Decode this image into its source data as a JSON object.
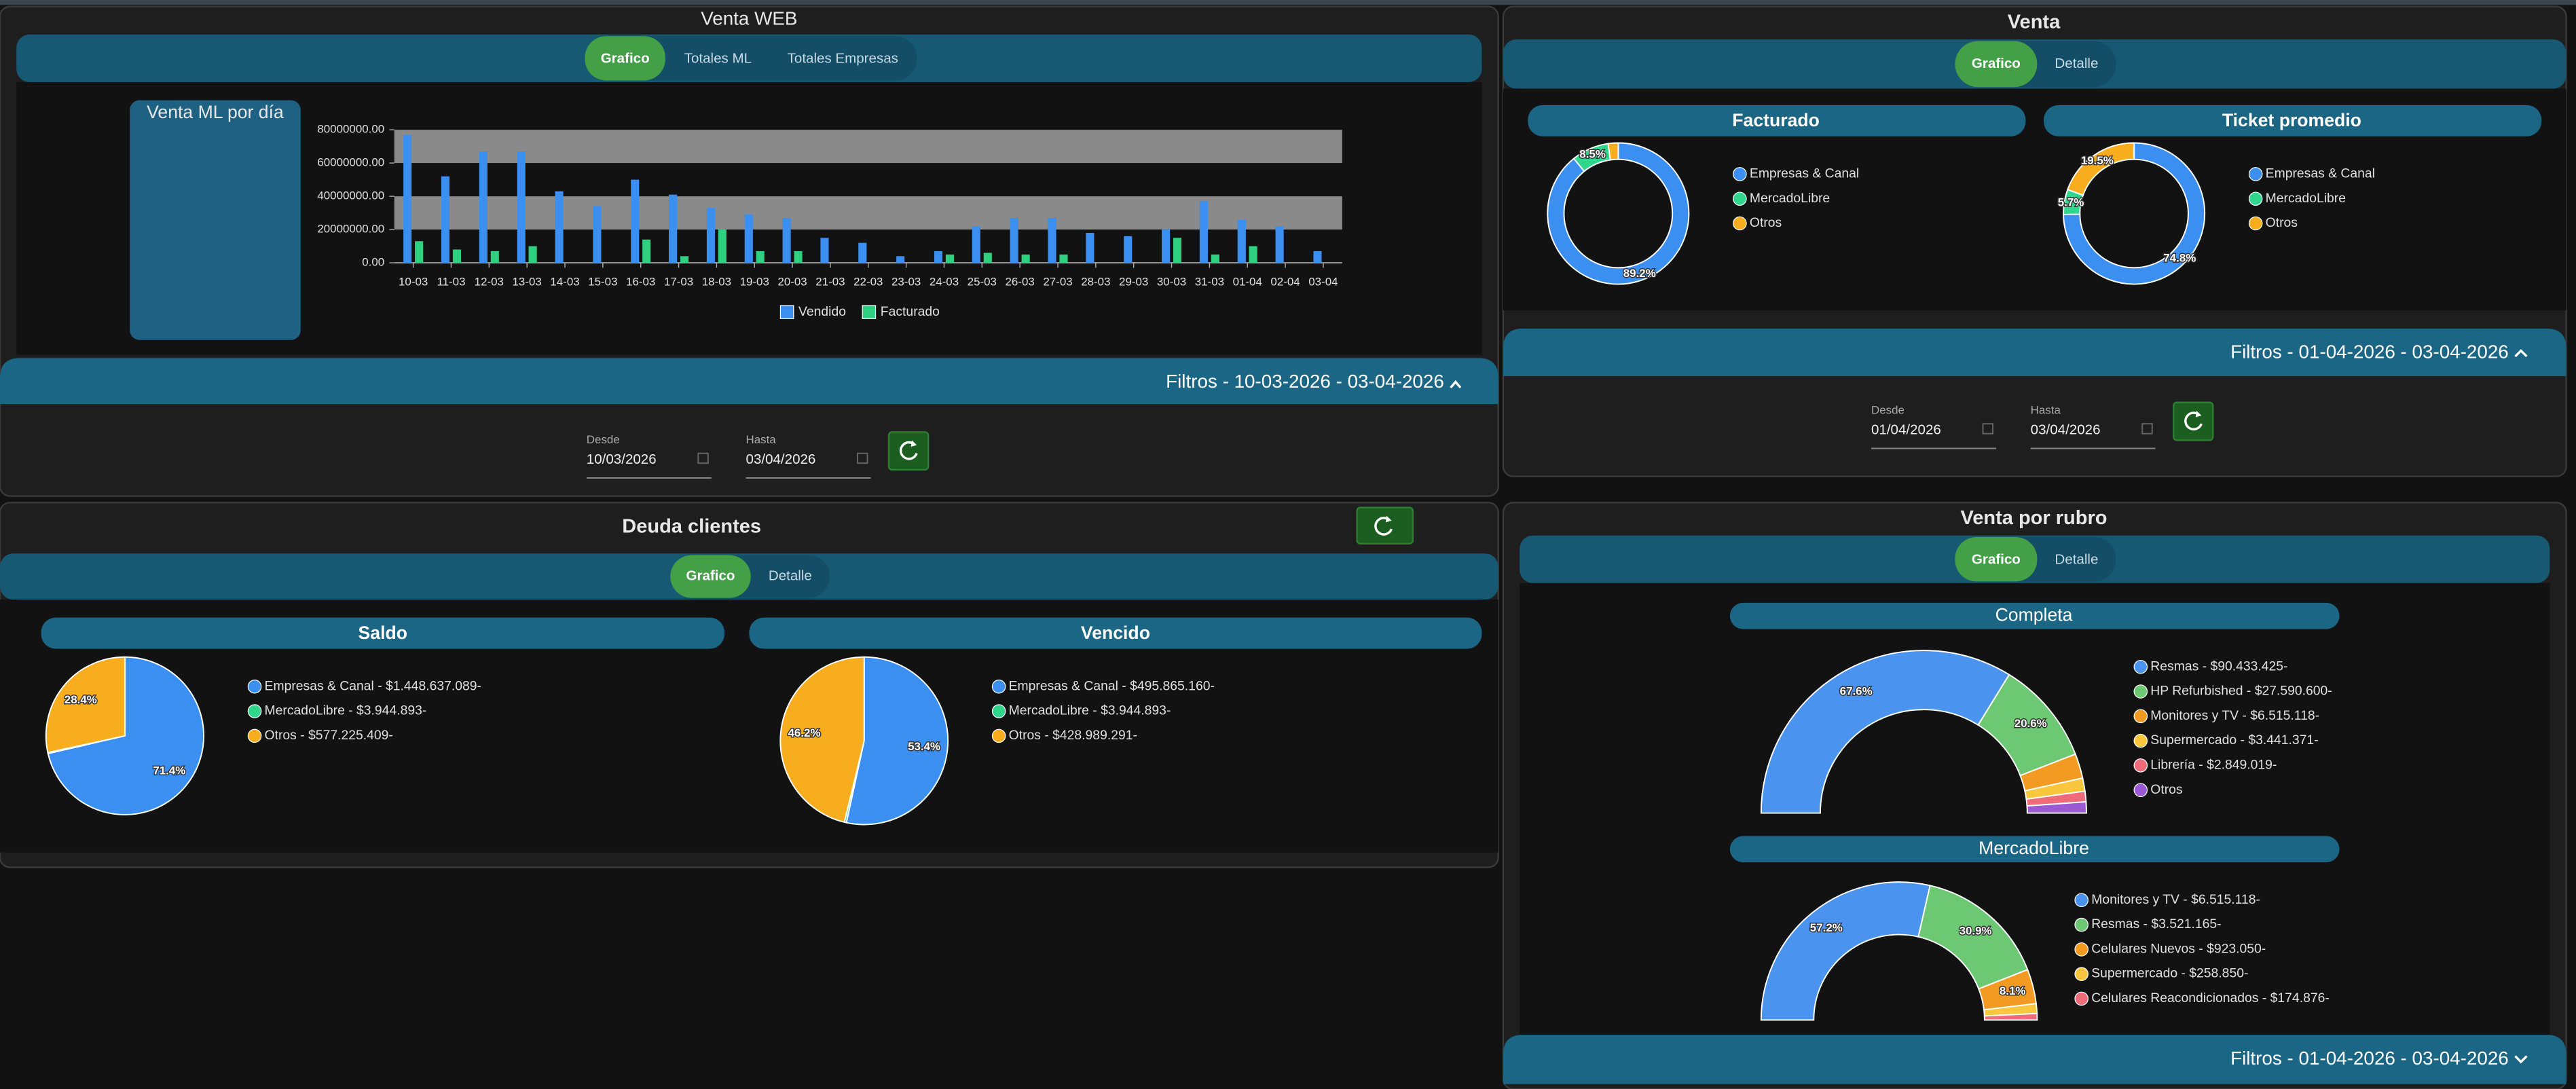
{
  "venta_web": {
    "title": "Venta WEB",
    "tabs": [
      "Grafico",
      "Totales ML",
      "Totales Empresas"
    ],
    "card_title": "Venta ML por día",
    "chart_data": {
      "type": "bar",
      "categories": [
        "10-03",
        "11-03",
        "12-03",
        "13-03",
        "14-03",
        "15-03",
        "16-03",
        "17-03",
        "18-03",
        "19-03",
        "20-03",
        "21-03",
        "22-03",
        "23-03",
        "24-03",
        "25-03",
        "26-03",
        "27-03",
        "28-03",
        "29-03",
        "30-03",
        "31-03",
        "01-04",
        "02-04",
        "03-04"
      ],
      "series": [
        {
          "name": "Vendido",
          "color": "#3a8ff0",
          "values": [
            77000000,
            52000000,
            67000000,
            67000000,
            43000000,
            34000000,
            50000000,
            41000000,
            33000000,
            29000000,
            27000000,
            15000000,
            12000000,
            4000000,
            7000000,
            22000000,
            27000000,
            27000000,
            18000000,
            16000000,
            20000000,
            37000000,
            26000000,
            22000000,
            7000000
          ]
        },
        {
          "name": "Facturado",
          "color": "#2fd07f",
          "values": [
            13000000,
            8000000,
            7000000,
            10000000,
            null,
            null,
            14000000,
            4000000,
            20000000,
            7000000,
            7000000,
            null,
            null,
            null,
            5000000,
            6000000,
            5000000,
            5000000,
            null,
            null,
            15000000,
            5000000,
            10000000,
            null,
            null
          ]
        }
      ],
      "ylim": [
        0,
        80000000
      ],
      "yticks": [
        {
          "value": 0,
          "label": "0.00"
        },
        {
          "value": 20000000,
          "label": "20000000.00"
        },
        {
          "value": 40000000,
          "label": "40000000.00"
        },
        {
          "value": 60000000,
          "label": "60000000.00"
        },
        {
          "value": 80000000,
          "label": "80000000.00"
        }
      ],
      "grid_bands": true,
      "band_color": "#8a8a8a"
    },
    "filter": {
      "label": "Filtros - 10-03-2026 - 03-04-2026",
      "desde_label": "Desde",
      "desde": "10/03/2026",
      "hasta_label": "Hasta",
      "hasta": "03/04/2026"
    }
  },
  "venta": {
    "title": "Venta",
    "tabs": [
      "Grafico",
      "Detalle"
    ],
    "charts": [
      {
        "type": "doughnut",
        "title": "Facturado",
        "categories": [
          "Empresas & Canal",
          "MercadoLibre",
          "Otros"
        ],
        "colors": [
          "#3a8ff0",
          "#2fd68c",
          "#f7ad1d"
        ],
        "values": [
          89.2,
          8.5,
          2.3
        ],
        "value_labels": [
          "89.2%",
          "8.5%",
          null
        ]
      },
      {
        "type": "doughnut",
        "title": "Ticket promedio",
        "categories": [
          "Empresas & Canal",
          "MercadoLibre",
          "Otros"
        ],
        "colors": [
          "#3a8ff0",
          "#2fd68c",
          "#f7ad1d"
        ],
        "values": [
          74.8,
          5.7,
          19.5
        ],
        "value_labels": [
          "74.8%",
          "5.7%",
          "19.5%"
        ]
      }
    ],
    "filter": {
      "label": "Filtros - 01-04-2026 - 03-04-2026",
      "desde_label": "Desde",
      "desde": "01/04/2026",
      "hasta_label": "Hasta",
      "hasta": "03/04/2026"
    }
  },
  "deuda_clientes": {
    "title": "Deuda clientes",
    "tabs": [
      "Grafico",
      "Detalle"
    ],
    "charts": [
      {
        "type": "pie",
        "title": "Saldo",
        "categories": [
          "Empresas & Canal - $1.448.637.089-",
          "MercadoLibre - $3.944.893-",
          "Otros - $577.225.409-"
        ],
        "colors": [
          "#3a8ff0",
          "#2fd68c",
          "#f7ad1d"
        ],
        "values": [
          71.4,
          0.2,
          28.4
        ],
        "value_labels": [
          "71.4%",
          null,
          "28.4%"
        ]
      },
      {
        "type": "pie",
        "title": "Vencido",
        "categories": [
          "Empresas & Canal - $495.865.160-",
          "MercadoLibre - $3.944.893-",
          "Otros - $428.989.291-"
        ],
        "colors": [
          "#3a8ff0",
          "#2fd68c",
          "#f7ad1d"
        ],
        "values": [
          53.4,
          0.4,
          46.2
        ],
        "value_labels": [
          "53.4%",
          null,
          "46.2%"
        ]
      }
    ]
  },
  "venta_por_rubro": {
    "title": "Venta por rubro",
    "tabs": [
      "Grafico",
      "Detalle"
    ],
    "charts": [
      {
        "type": "half-doughnut",
        "title": "Completa",
        "categories": [
          "Resmas - $90.433.425-",
          "HP Refurbished - $27.590.600-",
          "Monitores y TV - $6.515.118-",
          "Supermercado - $3.441.371-",
          "Librería - $2.849.019-",
          "Otros"
        ],
        "colors": [
          "#4a93ee",
          "#6cc872",
          "#f39a22",
          "#f8c73e",
          "#ef6b7a",
          "#9b59d6"
        ],
        "values": [
          67.6,
          20.6,
          4.9,
          2.6,
          2.1,
          2.2
        ],
        "value_labels": [
          "67.6%",
          "20.6%",
          null,
          null,
          null,
          null
        ]
      },
      {
        "type": "half-doughnut",
        "title": "MercadoLibre",
        "categories": [
          "Monitores y TV - $6.515.118-",
          "Resmas - $3.521.165-",
          "Celulares Nuevos - $923.050-",
          "Supermercado - $258.850-",
          "Celulares Reacondicionados - $174.876-"
        ],
        "colors": [
          "#4a93ee",
          "#6cc872",
          "#f39a22",
          "#f8c73e",
          "#ef6b7a"
        ],
        "values": [
          57.2,
          30.9,
          8.1,
          2.3,
          1.5
        ],
        "value_labels": [
          "57.2%",
          "30.9%",
          "8.1%",
          null,
          null
        ]
      }
    ],
    "filter": {
      "label": "Filtros - 01-04-2026 - 03-04-2026"
    }
  }
}
